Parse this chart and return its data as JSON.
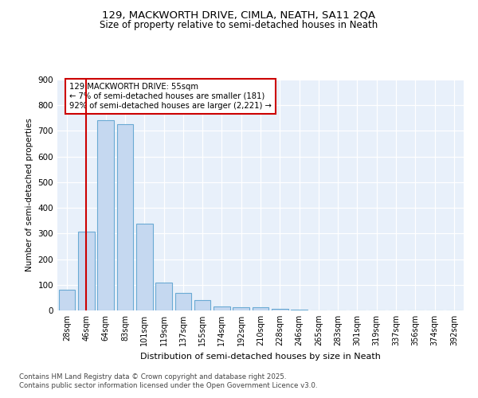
{
  "title1": "129, MACKWORTH DRIVE, CIMLA, NEATH, SA11 2QA",
  "title2": "Size of property relative to semi-detached houses in Neath",
  "xlabel": "Distribution of semi-detached houses by size in Neath",
  "ylabel": "Number of semi-detached properties",
  "bar_categories": [
    "28sqm",
    "46sqm",
    "64sqm",
    "83sqm",
    "101sqm",
    "119sqm",
    "137sqm",
    "155sqm",
    "174sqm",
    "192sqm",
    "210sqm",
    "228sqm",
    "246sqm",
    "265sqm",
    "283sqm",
    "301sqm",
    "319sqm",
    "337sqm",
    "356sqm",
    "374sqm",
    "392sqm"
  ],
  "bar_values": [
    80,
    307,
    743,
    726,
    338,
    110,
    68,
    40,
    15,
    13,
    13,
    6,
    4,
    0,
    0,
    0,
    0,
    0,
    0,
    0,
    0
  ],
  "bar_color": "#c5d8f0",
  "bar_edge_color": "#6aaad4",
  "vline_x_index": 1,
  "vline_color": "#cc0000",
  "annotation_title": "129 MACKWORTH DRIVE: 55sqm",
  "annotation_line1": "← 7% of semi-detached houses are smaller (181)",
  "annotation_line2": "92% of semi-detached houses are larger (2,221) →",
  "annotation_box_color": "#cc0000",
  "ylim": [
    0,
    900
  ],
  "yticks": [
    0,
    100,
    200,
    300,
    400,
    500,
    600,
    700,
    800,
    900
  ],
  "footer1": "Contains HM Land Registry data © Crown copyright and database right 2025.",
  "footer2": "Contains public sector information licensed under the Open Government Licence v3.0.",
  "bg_color": "#ffffff",
  "plot_bg_color": "#e8f0fa",
  "grid_color": "#ffffff"
}
